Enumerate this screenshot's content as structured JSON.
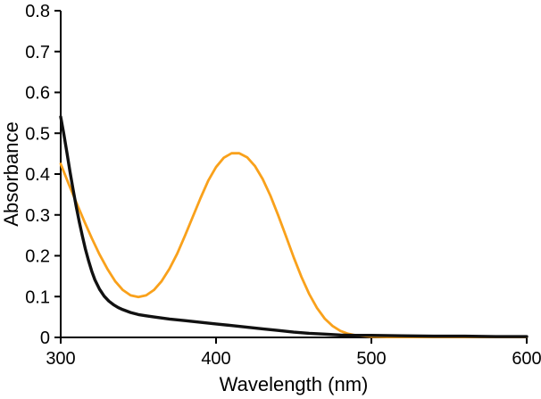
{
  "figure": {
    "background": "#ffffff"
  },
  "chart_data": {
    "type": "line",
    "title": "",
    "xlabel": "Wavelength (nm)",
    "ylabel": "Absorbance",
    "xlim": [
      300,
      600
    ],
    "ylim": [
      0,
      0.8
    ],
    "xticks": [
      300,
      400,
      500,
      600
    ],
    "yticks": [
      0,
      0.1,
      0.2,
      0.3,
      0.4,
      0.5,
      0.6,
      0.7,
      0.8
    ],
    "grid": false,
    "legend": null,
    "axis_color": "#000000",
    "series": [
      {
        "name": "orange-spectrum",
        "color": "#F9A11B",
        "width": 2.8,
        "x": [
          300,
          305,
          310,
          315,
          320,
          325,
          330,
          335,
          340,
          345,
          350,
          355,
          360,
          365,
          370,
          375,
          380,
          385,
          390,
          395,
          400,
          405,
          410,
          415,
          420,
          425,
          430,
          435,
          440,
          445,
          450,
          455,
          460,
          465,
          470,
          475,
          480,
          485,
          490,
          500,
          510,
          520,
          540,
          560,
          580,
          600
        ],
        "y": [
          0.425,
          0.377,
          0.331,
          0.286,
          0.243,
          0.203,
          0.168,
          0.138,
          0.116,
          0.103,
          0.099,
          0.103,
          0.116,
          0.138,
          0.168,
          0.205,
          0.249,
          0.295,
          0.341,
          0.384,
          0.417,
          0.44,
          0.451,
          0.451,
          0.441,
          0.42,
          0.388,
          0.347,
          0.299,
          0.248,
          0.196,
          0.148,
          0.106,
          0.072,
          0.046,
          0.028,
          0.016,
          0.009,
          0.005,
          0.002,
          0.001,
          0.001,
          0.001,
          0.001,
          0.001,
          0.001
        ]
      },
      {
        "name": "black-spectrum",
        "color": "#111111",
        "width": 3.4,
        "x": [
          300,
          302,
          304,
          306,
          308,
          310,
          312,
          314,
          316,
          318,
          320,
          322,
          325,
          328,
          331,
          334,
          337,
          340,
          345,
          350,
          355,
          360,
          370,
          380,
          390,
          400,
          410,
          420,
          430,
          440,
          450,
          460,
          470,
          480,
          490,
          500,
          520,
          540,
          560,
          580,
          600
        ],
        "y": [
          0.54,
          0.498,
          0.452,
          0.406,
          0.362,
          0.32,
          0.282,
          0.247,
          0.215,
          0.187,
          0.162,
          0.141,
          0.118,
          0.101,
          0.089,
          0.08,
          0.073,
          0.068,
          0.061,
          0.056,
          0.053,
          0.05,
          0.045,
          0.041,
          0.037,
          0.033,
          0.029,
          0.025,
          0.021,
          0.017,
          0.013,
          0.01,
          0.008,
          0.006,
          0.005,
          0.005,
          0.004,
          0.003,
          0.003,
          0.002,
          0.002
        ]
      }
    ]
  }
}
